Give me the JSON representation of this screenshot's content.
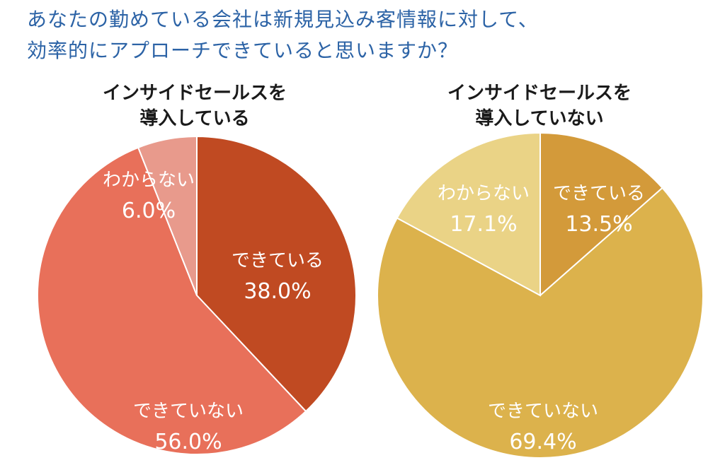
{
  "title": {
    "line1": "あなたの勤めている会社は新規見込み客情報に対して、",
    "line2": "効率的にアプローチできていると思いますか？"
  },
  "chart_data": [
    {
      "type": "pie",
      "title": [
        "インサイドセールスを",
        "導入している"
      ],
      "slices": [
        {
          "label": "できている",
          "value": 38.0,
          "value_text": "38.0%",
          "color": "#c04a22"
        },
        {
          "label": "できていない",
          "value": 56.0,
          "value_text": "56.0%",
          "color": "#e8705a"
        },
        {
          "label": "わからない",
          "value": 6.0,
          "value_text": "6.0%",
          "color": "#e89a8c"
        }
      ]
    },
    {
      "type": "pie",
      "title": [
        "インサイドセールスを",
        "導入していない"
      ],
      "slices": [
        {
          "label": "できている",
          "value": 13.5,
          "value_text": "13.5%",
          "color": "#d39a3a"
        },
        {
          "label": "できていない",
          "value": 69.4,
          "value_text": "69.4%",
          "color": "#dcb24c"
        },
        {
          "label": "わからない",
          "value": 17.1,
          "value_text": "17.1%",
          "color": "#ead386"
        }
      ]
    }
  ]
}
